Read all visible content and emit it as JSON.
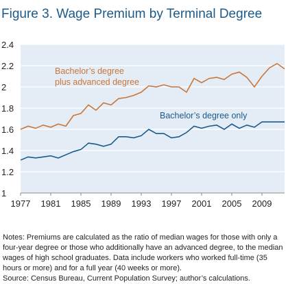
{
  "chart_data": {
    "type": "line",
    "title": "Figure 3. Wage Premium by Terminal Degree",
    "x": [
      1977,
      1978,
      1979,
      1980,
      1981,
      1982,
      1983,
      1984,
      1985,
      1986,
      1987,
      1988,
      1989,
      1990,
      1991,
      1992,
      1993,
      1994,
      1995,
      1996,
      1997,
      1998,
      1999,
      2000,
      2001,
      2002,
      2003,
      2004,
      2005,
      2006,
      2007,
      2008,
      2009,
      2010,
      2011,
      2012
    ],
    "series": [
      {
        "name": "Bachelor’s degree plus advanced degree",
        "color": "#c8763a",
        "values": [
          1.6,
          1.63,
          1.61,
          1.64,
          1.62,
          1.65,
          1.63,
          1.73,
          1.75,
          1.83,
          1.78,
          1.85,
          1.83,
          1.89,
          1.9,
          1.92,
          1.95,
          2.01,
          2.0,
          2.02,
          2.0,
          2.0,
          1.95,
          2.08,
          2.04,
          2.08,
          2.09,
          2.07,
          2.12,
          2.14,
          2.09,
          2.0,
          2.1,
          2.18,
          2.22,
          2.17
        ]
      },
      {
        "name": "Bachelor’s degree only",
        "color": "#1b5a8a",
        "values": [
          1.31,
          1.34,
          1.33,
          1.34,
          1.35,
          1.33,
          1.36,
          1.39,
          1.41,
          1.47,
          1.46,
          1.44,
          1.46,
          1.53,
          1.53,
          1.52,
          1.54,
          1.6,
          1.56,
          1.56,
          1.52,
          1.53,
          1.57,
          1.63,
          1.61,
          1.63,
          1.64,
          1.6,
          1.65,
          1.61,
          1.64,
          1.62,
          1.67,
          1.67,
          1.67,
          1.67
        ]
      }
    ],
    "xlim": [
      1977,
      2012
    ],
    "xticks": [
      1977,
      1981,
      1985,
      1989,
      1993,
      1997,
      2001,
      2005,
      2009
    ],
    "ylim": [
      1,
      2.4
    ],
    "yticks": [
      1,
      1.2,
      1.4,
      1.6,
      1.8,
      2,
      2.2,
      2.4
    ],
    "grid": true,
    "notes": "Notes: Premiums are calculated as the ratio of median wages for those with only a four-year degree or those who additionally have an advanced degree, to the median wages of high school graduates. Data include workers who worked full-time (35 hours or more) and for a full year (40 weeks or more).",
    "source": "Source: Census Bureau, Current Population Survey; author’s calculations."
  }
}
